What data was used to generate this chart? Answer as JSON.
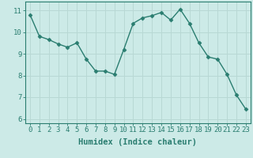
{
  "x": [
    0,
    1,
    2,
    3,
    4,
    5,
    6,
    7,
    8,
    9,
    10,
    11,
    12,
    13,
    14,
    15,
    16,
    17,
    18,
    19,
    20,
    21,
    22,
    23
  ],
  "y": [
    10.8,
    9.8,
    9.65,
    9.45,
    9.3,
    9.5,
    8.75,
    8.2,
    8.2,
    8.05,
    9.2,
    10.4,
    10.65,
    10.75,
    10.9,
    10.55,
    11.05,
    10.4,
    9.5,
    8.85,
    8.75,
    8.05,
    7.1,
    6.45
  ],
  "line_color": "#2a7d70",
  "marker": "D",
  "marker_size": 2.5,
  "xlabel": "Humidex (Indice chaleur)",
  "xlim": [
    -0.5,
    23.5
  ],
  "ylim": [
    5.8,
    11.4
  ],
  "yticks": [
    6,
    7,
    8,
    9,
    10,
    11
  ],
  "xticks": [
    0,
    1,
    2,
    3,
    4,
    5,
    6,
    7,
    8,
    9,
    10,
    11,
    12,
    13,
    14,
    15,
    16,
    17,
    18,
    19,
    20,
    21,
    22,
    23
  ],
  "bg_color": "#cceae7",
  "grid_color": "#b8d8d4",
  "axis_color": "#2a7d70",
  "xlabel_fontsize": 7.5,
  "tick_fontsize": 6.5,
  "line_width": 1.0
}
